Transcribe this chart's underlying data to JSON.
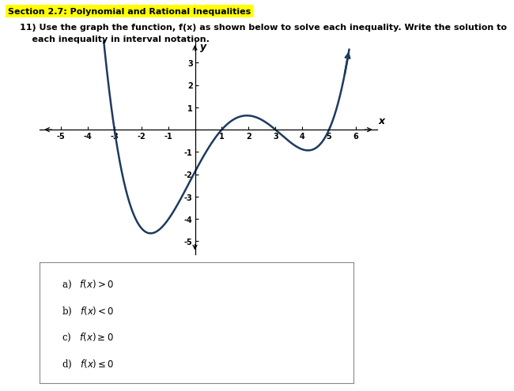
{
  "section_title": "Section 2.7: Polynomial and Rational Inequalities",
  "problem_line1": "11) Use the graph the function, f(x) as shown below to solve each inequality. Write the solution to",
  "problem_line2": "    each inequality in interval notation.",
  "graph": {
    "xlim": [
      -5.8,
      6.8
    ],
    "ylim": [
      -5.6,
      4.0
    ],
    "xticks": [
      -5,
      -4,
      -3,
      -2,
      -1,
      1,
      2,
      3,
      4,
      5,
      6
    ],
    "yticks": [
      -5,
      -4,
      -3,
      -2,
      -1,
      1,
      2,
      3
    ],
    "xlabel": "x",
    "ylabel": "y",
    "curve_color": "#1e3a5f",
    "curve_linewidth": 1.8,
    "poly_k": 0.042,
    "poly_roots": [
      -3,
      1,
      3,
      5
    ],
    "x_start": -3.85,
    "x_end": 5.75
  },
  "answers": [
    "a)   f(x) > 0",
    "b)   f(x) < 0",
    "c)   f(x) ≥ 0",
    "d)   f(x) ≤ 0"
  ],
  "bg_color": "#ffffff",
  "highlight_color": "#ffff00",
  "title_fontsize": 8.0,
  "body_fontsize": 8.0,
  "tick_fontsize": 7.0,
  "ans_fontsize": 8.5
}
